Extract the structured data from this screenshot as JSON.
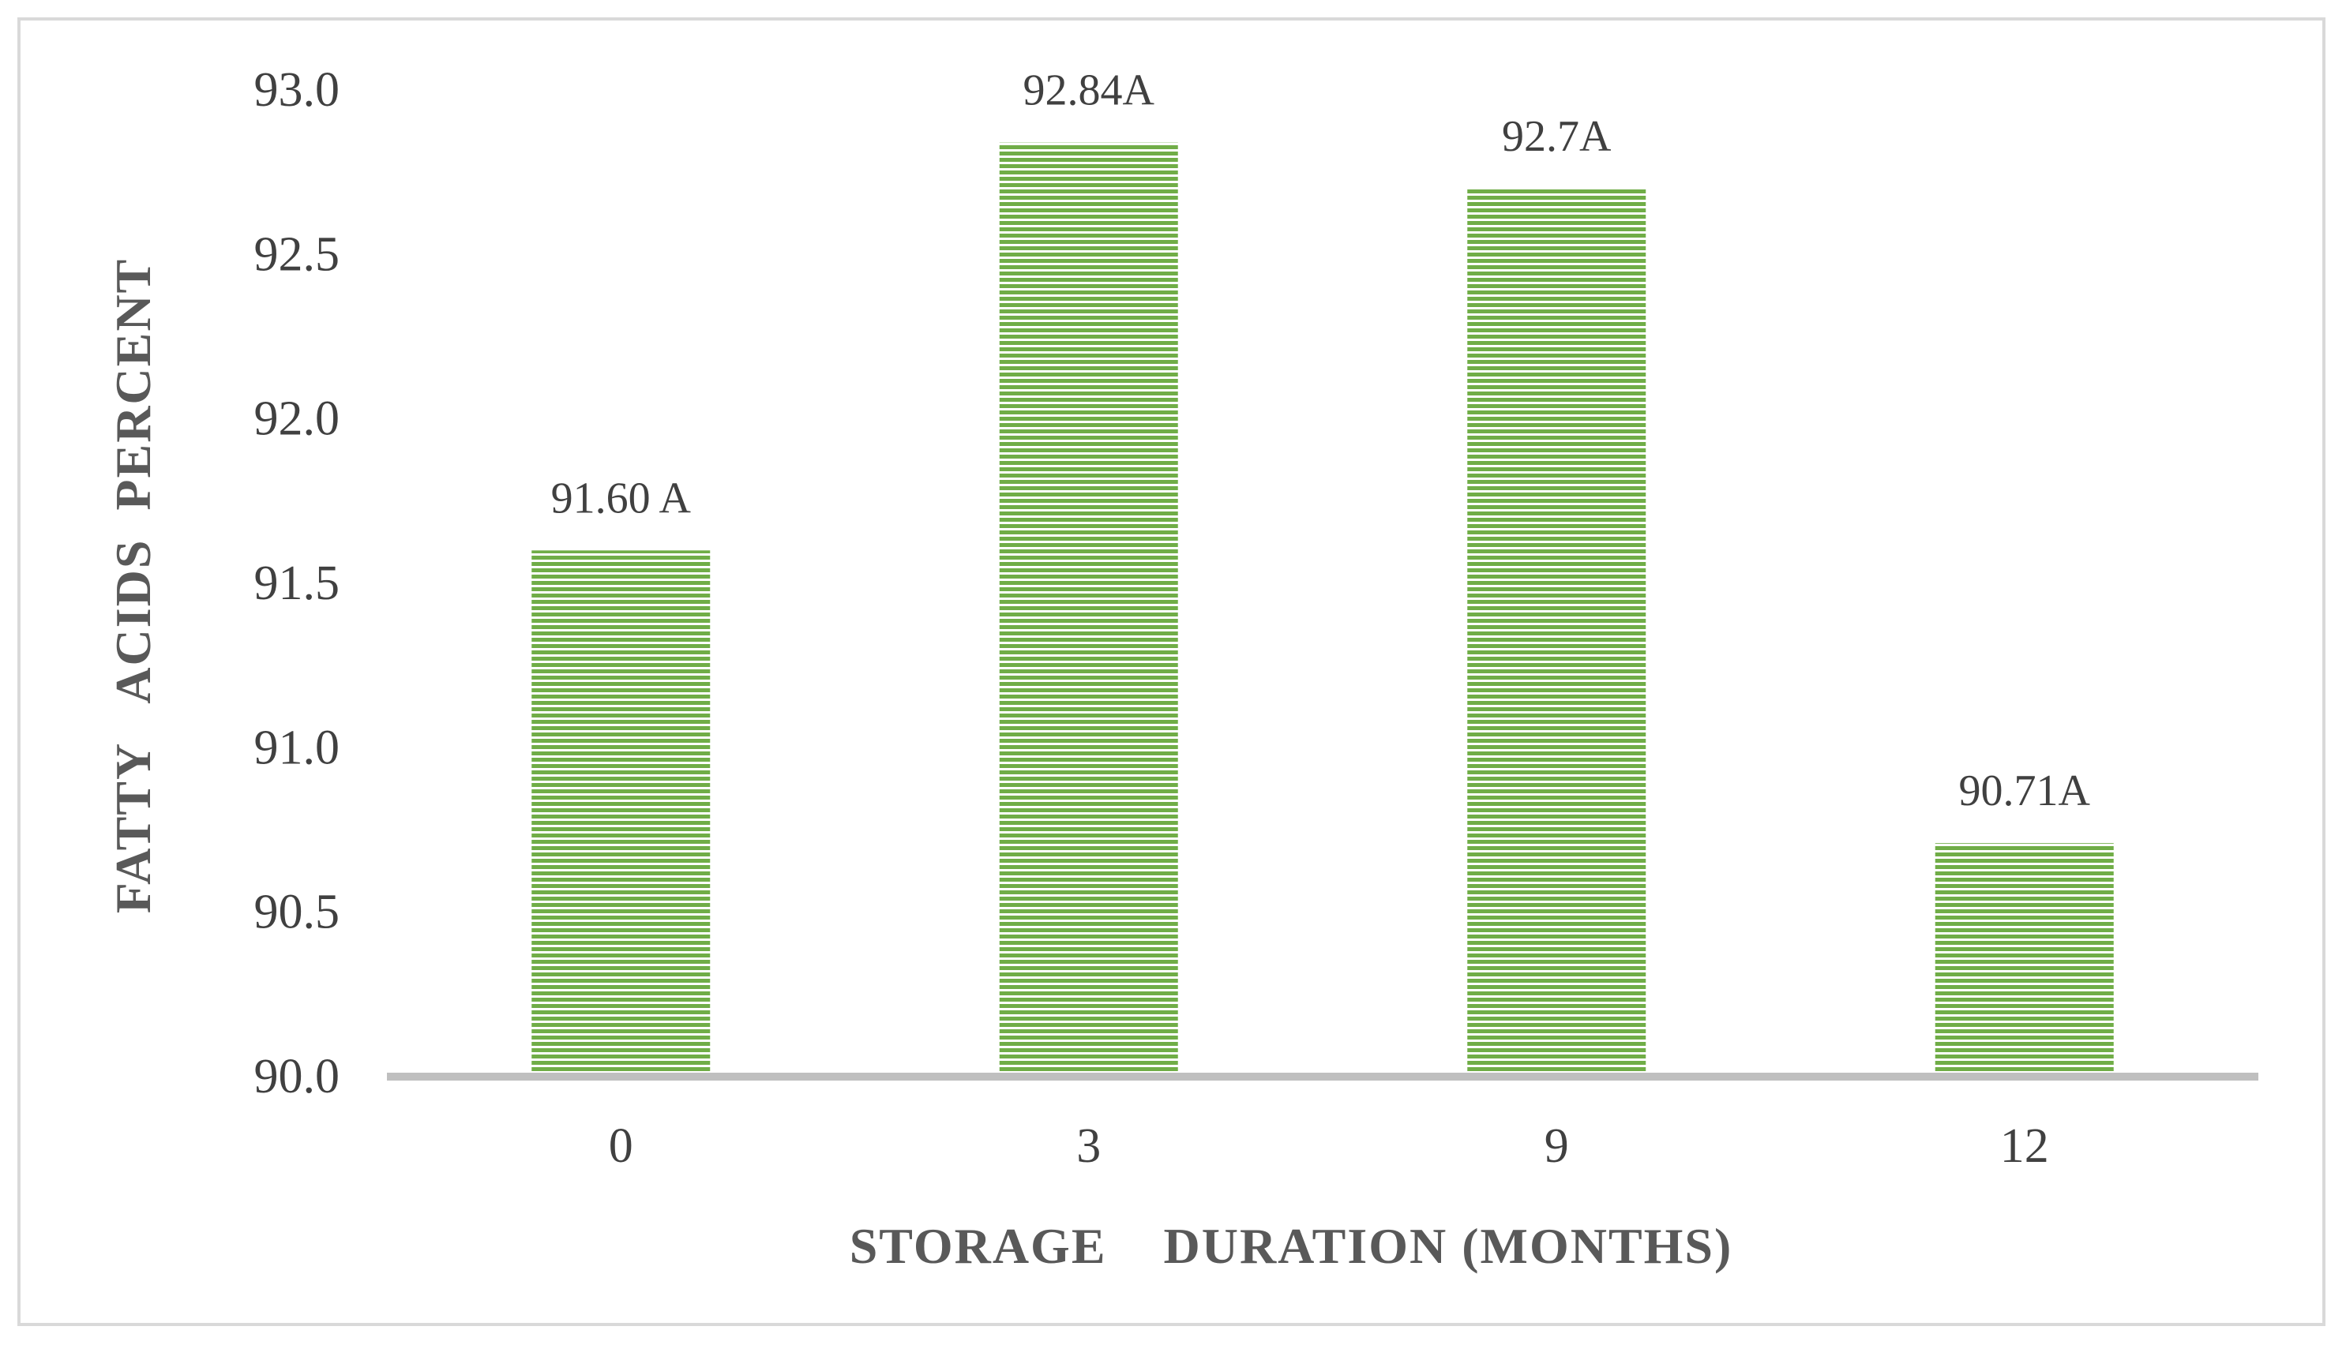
{
  "chart_data": {
    "type": "bar",
    "categories": [
      "0",
      "3",
      "9",
      "12"
    ],
    "values": [
      91.6,
      92.84,
      92.7,
      90.71
    ],
    "data_labels": [
      "91.60 A",
      "92.84A",
      "92.7A",
      "90.71A"
    ],
    "y_ticks": [
      "90.0",
      "90.5",
      "91.0",
      "91.5",
      "92.0",
      "92.5",
      "93.0"
    ],
    "ylim": [
      90.0,
      93.0
    ],
    "xlabel": "STORAGE    DURATION (MONTHS)",
    "ylabel": "FATTY   ACIDS  PERCENT",
    "title": "",
    "grid": false,
    "legend": "none",
    "bar_color": "#70ad47",
    "bar_pattern": "horizontal-lines",
    "baseline_color": "#bfbfbf",
    "text_color": "#404040"
  }
}
